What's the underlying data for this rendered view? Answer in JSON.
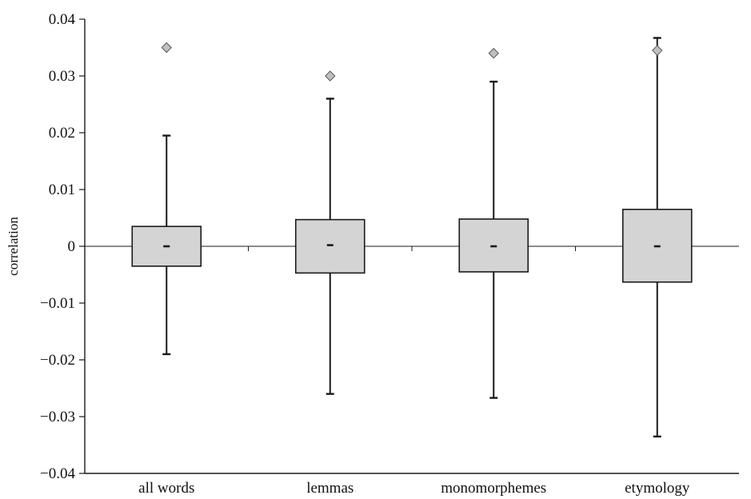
{
  "chart_data": {
    "type": "boxplot",
    "title": "",
    "xlabel": "",
    "ylabel": "correlation",
    "ylim": [
      -0.04,
      0.04
    ],
    "y_ticks": [
      0.04,
      0.03,
      0.02,
      0.01,
      0,
      -0.01,
      -0.02,
      -0.03,
      -0.04
    ],
    "y_tick_labels": [
      "0.04",
      "0.03",
      "0.02",
      "0.01",
      "0",
      "−0.01",
      "−0.02",
      "−0.03",
      "−0.04"
    ],
    "grid": false,
    "legend": "none",
    "categories": [
      "all words",
      "lemmas",
      "monomorphemes",
      "etymology"
    ],
    "boxes": [
      {
        "category": "all words",
        "whisker_low": -0.019,
        "q1": -0.0035,
        "median": 0.0,
        "q3": 0.0035,
        "whisker_high": 0.0195,
        "observed": 0.035
      },
      {
        "category": "lemmas",
        "whisker_low": -0.026,
        "q1": -0.0047,
        "median": 0.0002,
        "q3": 0.0047,
        "whisker_high": 0.026,
        "observed": 0.03
      },
      {
        "category": "monomorphemes",
        "whisker_low": -0.0267,
        "q1": -0.0045,
        "median": 0.0,
        "q3": 0.0048,
        "whisker_high": 0.029,
        "observed": 0.034
      },
      {
        "category": "etymology",
        "whisker_low": -0.0335,
        "q1": -0.0063,
        "median": 0.0,
        "q3": 0.0065,
        "whisker_high": 0.0367,
        "observed": 0.0345
      }
    ],
    "colors": {
      "box_fill": "#d4d4d4",
      "box_stroke": "#1a1a1a",
      "marker_fill": "#c0c0c0",
      "axis": "#1a1a1a"
    }
  }
}
